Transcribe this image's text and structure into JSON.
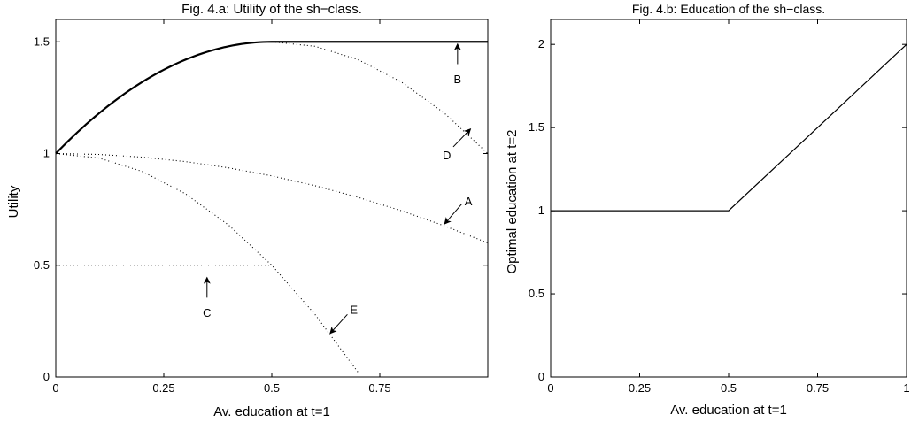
{
  "chart_data": [
    {
      "type": "line",
      "title": "Fig. 4.a: Utility of the sh−class.",
      "xlabel": "Av. education at t=1",
      "ylabel": "Utility",
      "xlim": [
        0,
        1
      ],
      "ylim": [
        0,
        1.6
      ],
      "xticks": [
        {
          "v": 0,
          "label": "0"
        },
        {
          "v": 0.25,
          "label": "0.25"
        },
        {
          "v": 0.5,
          "label": "0.5"
        },
        {
          "v": 0.75,
          "label": "0.75"
        }
      ],
      "yticks": [
        {
          "v": 0,
          "label": "0"
        },
        {
          "v": 0.5,
          "label": "0.5"
        },
        {
          "v": 1,
          "label": "1"
        },
        {
          "v": 1.5,
          "label": "1.5"
        }
      ],
      "series": [
        {
          "style": "solid",
          "x": [
            0,
            0.05,
            0.1,
            0.15,
            0.2,
            0.25,
            0.3,
            0.35,
            0.4,
            0.45,
            0.5,
            0.6,
            0.7,
            0.8,
            0.9,
            1.0
          ],
          "y": [
            1.0,
            1.095,
            1.18,
            1.255,
            1.32,
            1.375,
            1.42,
            1.455,
            1.48,
            1.495,
            1.5,
            1.5,
            1.5,
            1.5,
            1.5,
            1.5
          ]
        },
        {
          "style": "dotted",
          "x": [
            0.5,
            0.6,
            0.7,
            0.8,
            0.9,
            1.0
          ],
          "y": [
            1.5,
            1.48,
            1.42,
            1.32,
            1.18,
            1.0
          ]
        },
        {
          "style": "dotted",
          "x": [
            0,
            0.1,
            0.2,
            0.3,
            0.4,
            0.5,
            0.6,
            0.7,
            0.8,
            0.9,
            1.0
          ],
          "y": [
            1.0,
            0.996,
            0.984,
            0.964,
            0.936,
            0.9,
            0.856,
            0.804,
            0.744,
            0.676,
            0.6
          ]
        },
        {
          "style": "dotted",
          "x": [
            0,
            0.1,
            0.2,
            0.3,
            0.4,
            0.5,
            0.6,
            0.7
          ],
          "y": [
            1.0,
            0.98,
            0.92,
            0.82,
            0.68,
            0.5,
            0.28,
            0.02
          ]
        },
        {
          "style": "dotted",
          "x": [
            0,
            0.5
          ],
          "y": [
            0.5,
            0.5
          ]
        }
      ],
      "annotations": [
        {
          "label": "A",
          "tip": [
            0.9,
            0.685
          ],
          "from": [
            0.94,
            0.775
          ],
          "text_at": [
            0.955,
            0.785
          ]
        },
        {
          "label": "B",
          "tip": [
            0.93,
            1.49
          ],
          "from": [
            0.93,
            1.4
          ],
          "text_at": [
            0.93,
            1.33
          ]
        },
        {
          "label": "C",
          "tip": [
            0.35,
            0.445
          ],
          "from": [
            0.35,
            0.355
          ],
          "text_at": [
            0.35,
            0.285
          ]
        },
        {
          "label": "D",
          "tip": [
            0.96,
            1.11
          ],
          "from": [
            0.92,
            1.03
          ],
          "text_at": [
            0.905,
            0.99
          ]
        },
        {
          "label": "E",
          "tip": [
            0.635,
            0.195
          ],
          "from": [
            0.675,
            0.28
          ],
          "text_at": [
            0.69,
            0.3
          ]
        }
      ]
    },
    {
      "type": "line",
      "title": "Fig. 4.b: Education of the sh−class.",
      "xlabel": "Av. education at t=1",
      "ylabel": "Optimal education at t=2",
      "xlim": [
        0,
        1
      ],
      "ylim": [
        0,
        2.15
      ],
      "xticks": [
        {
          "v": 0,
          "label": "0"
        },
        {
          "v": 0.25,
          "label": "0.25"
        },
        {
          "v": 0.5,
          "label": "0.5"
        },
        {
          "v": 0.75,
          "label": "0.75"
        },
        {
          "v": 1,
          "label": "1"
        }
      ],
      "yticks": [
        {
          "v": 0,
          "label": "0"
        },
        {
          "v": 0.5,
          "label": "0.5"
        },
        {
          "v": 1,
          "label": "1"
        },
        {
          "v": 1.5,
          "label": "1.5"
        },
        {
          "v": 2,
          "label": "2"
        }
      ],
      "series": [
        {
          "style": "solid",
          "x": [
            0,
            0.5,
            1.0
          ],
          "y": [
            1.0,
            1.0,
            2.0
          ]
        }
      ]
    }
  ]
}
